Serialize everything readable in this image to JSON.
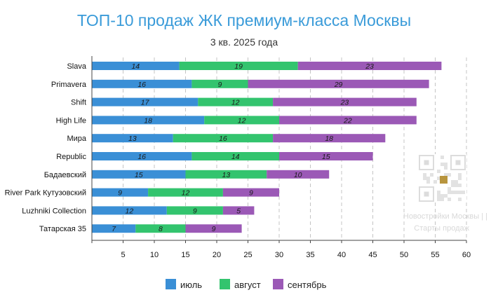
{
  "chart_data": {
    "type": "bar",
    "orientation": "horizontal",
    "stacked": true,
    "title": "ТОП-10 продаж ЖК премиум-класса Москвы",
    "subtitle": "3 кв. 2025 года",
    "xlabel": "",
    "ylabel": "",
    "xlim": [
      0,
      60
    ],
    "xticks": [
      5,
      10,
      15,
      20,
      25,
      30,
      35,
      40,
      45,
      50,
      55,
      60
    ],
    "grid": "x-major-dashed",
    "legend_position": "bottom",
    "categories": [
      "Slava",
      "Primavera",
      "Shift",
      "High Life",
      "Мира",
      "Republic",
      "Бадаевский",
      "River Park Кутузовский",
      "Luzhniki Collection",
      "Татарская 35"
    ],
    "series": [
      {
        "name": "июль",
        "color": "#3a8fd6",
        "values": [
          14,
          16,
          17,
          18,
          13,
          16,
          15,
          9,
          12,
          7
        ]
      },
      {
        "name": "август",
        "color": "#33c46e",
        "values": [
          19,
          9,
          12,
          12,
          16,
          14,
          13,
          12,
          9,
          8
        ]
      },
      {
        "name": "сентябрь",
        "color": "#9b59b6",
        "values": [
          23,
          29,
          23,
          22,
          18,
          15,
          10,
          9,
          5,
          9
        ]
      }
    ]
  },
  "watermark": {
    "qr_icon": "qr-code-icon",
    "line1": "Новостройки Москвы | |",
    "line2": "Старты продаж"
  }
}
